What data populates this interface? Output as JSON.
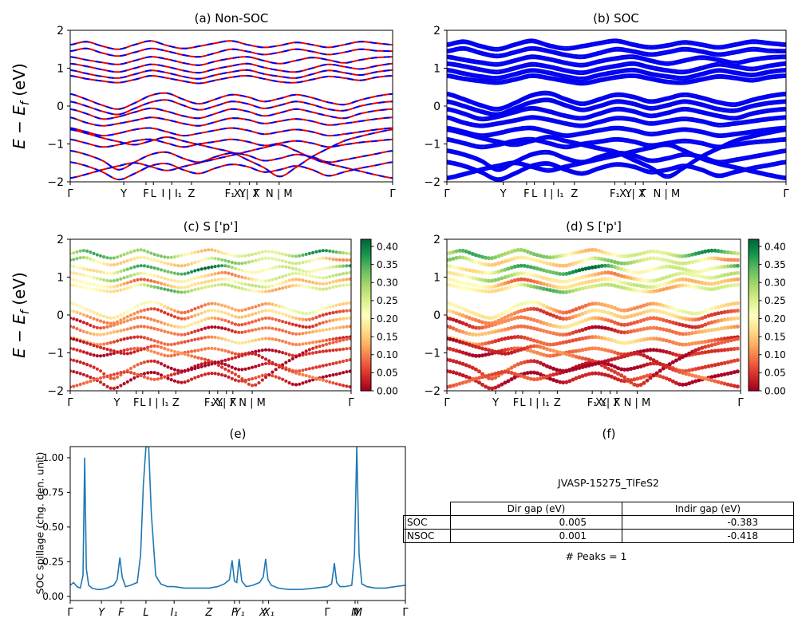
{
  "figure": {
    "background": "#ffffff",
    "cmap_colors": [
      "#a50026",
      "#d73027",
      "#f46d43",
      "#fdae61",
      "#fee08b",
      "#ffffbf",
      "#d9ef8b",
      "#a6d96a",
      "#66bd63",
      "#1a9850",
      "#006837"
    ]
  },
  "labels": {
    "energy": {
      "main": "E − E",
      "sub": "f",
      "unit": " (eV)"
    }
  },
  "band_xticks": [
    {
      "p": 0.0,
      "l": "Γ"
    },
    {
      "p": 0.166,
      "l": "Y"
    },
    {
      "p": 0.235,
      "l": "F"
    },
    {
      "p": 0.258,
      "l": "L"
    },
    {
      "p": 0.315,
      "l": "I | I₁"
    },
    {
      "p": 0.376,
      "l": "Z"
    },
    {
      "p": 0.495,
      "l": "F₁"
    },
    {
      "p": 0.525,
      "l": "X₁"
    },
    {
      "p": 0.556,
      "l": "Y| X"
    },
    {
      "p": 0.579,
      "l": "Γ"
    },
    {
      "p": 0.648,
      "l": "N | M"
    },
    {
      "p": 1.0,
      "l": "Γ"
    }
  ],
  "bands": {
    "k_grid": "uniform 0..1, 21 points",
    "list": [
      {
        "w": 0.26,
        "e": [
          1.62,
          1.7,
          1.58,
          1.5,
          1.62,
          1.72,
          1.6,
          1.52,
          1.58,
          1.66,
          1.72,
          1.62,
          1.55,
          1.6,
          1.68,
          1.62,
          1.55,
          1.62,
          1.7,
          1.66,
          1.62
        ]
      },
      {
        "w": 0.22,
        "e": [
          1.45,
          1.52,
          1.4,
          1.32,
          1.42,
          1.52,
          1.45,
          1.35,
          1.3,
          1.4,
          1.5,
          1.44,
          1.36,
          1.42,
          1.5,
          1.44,
          1.36,
          1.42,
          1.5,
          1.46,
          1.45
        ]
      },
      {
        "w": 0.3,
        "e": [
          1.3,
          1.22,
          1.15,
          1.1,
          1.2,
          1.3,
          1.24,
          1.14,
          1.08,
          1.18,
          1.26,
          1.3,
          1.2,
          1.12,
          1.2,
          1.28,
          1.22,
          1.14,
          1.22,
          1.28,
          1.3
        ]
      },
      {
        "w": 0.2,
        "e": [
          1.12,
          1.05,
          0.96,
          0.9,
          1.0,
          1.1,
          1.04,
          0.94,
          0.88,
          0.98,
          1.06,
          1.12,
          1.02,
          0.94,
          0.9,
          1.0,
          1.1,
          1.04,
          0.98,
          1.06,
          1.12
        ]
      },
      {
        "w": 0.17,
        "e": [
          0.95,
          0.86,
          0.78,
          0.74,
          0.84,
          0.94,
          0.88,
          0.78,
          0.72,
          0.82,
          0.9,
          0.95,
          0.85,
          0.78,
          0.74,
          0.84,
          0.94,
          0.88,
          0.82,
          0.9,
          0.95
        ]
      },
      {
        "w": 0.24,
        "e": [
          0.8,
          0.72,
          0.66,
          0.62,
          0.7,
          0.8,
          0.74,
          0.66,
          0.6,
          0.68,
          0.76,
          0.8,
          0.72,
          0.64,
          0.62,
          0.7,
          0.78,
          0.74,
          0.68,
          0.76,
          0.8
        ]
      },
      {
        "w": 0.15,
        "e": [
          0.32,
          0.18,
          0.02,
          -0.08,
          0.08,
          0.28,
          0.34,
          0.18,
          0.06,
          0.18,
          0.3,
          0.24,
          0.12,
          0.2,
          0.3,
          0.22,
          0.1,
          0.04,
          0.16,
          0.26,
          0.32
        ]
      },
      {
        "w": 0.12,
        "e": [
          0.12,
          0.0,
          -0.14,
          -0.22,
          -0.06,
          0.1,
          0.16,
          0.02,
          -0.1,
          0.0,
          0.12,
          0.06,
          -0.06,
          0.02,
          0.12,
          0.04,
          -0.08,
          -0.12,
          0.0,
          0.08,
          0.12
        ]
      },
      {
        "w": 0.1,
        "e": [
          -0.08,
          -0.2,
          -0.34,
          -0.28,
          -0.16,
          -0.06,
          -0.14,
          -0.26,
          -0.32,
          -0.2,
          -0.08,
          -0.14,
          -0.26,
          -0.18,
          -0.08,
          -0.16,
          -0.26,
          -0.32,
          -0.2,
          -0.12,
          -0.08
        ]
      },
      {
        "w": 0.08,
        "e": [
          -0.3,
          -0.44,
          -0.52,
          -0.46,
          -0.38,
          -0.3,
          -0.36,
          -0.46,
          -0.52,
          -0.42,
          -0.32,
          -0.36,
          -0.46,
          -0.4,
          -0.34,
          -0.4,
          -0.5,
          -0.46,
          -0.4,
          -0.34,
          -0.3
        ]
      },
      {
        "w": 0.1,
        "e": [
          -0.58,
          -0.68,
          -0.78,
          -0.72,
          -0.62,
          -0.58,
          -0.68,
          -0.78,
          -0.72,
          -0.64,
          -0.58,
          -0.64,
          -0.74,
          -0.68,
          -0.62,
          -0.68,
          -0.78,
          -0.74,
          -0.68,
          -0.62,
          -0.58
        ]
      },
      {
        "w": 0.06,
        "e": [
          -0.88,
          -0.98,
          -1.08,
          -1.02,
          -0.92,
          -0.88,
          -0.98,
          -1.08,
          -1.0,
          -0.94,
          -0.88,
          -0.94,
          -1.04,
          -0.98,
          -0.92,
          -0.98,
          -1.08,
          -1.02,
          -0.96,
          -0.92,
          -0.88
        ]
      },
      {
        "w": 0.03,
        "e": [
          -1.18,
          -1.28,
          -1.44,
          -1.68,
          -1.48,
          -1.28,
          -1.22,
          -1.38,
          -1.48,
          -1.34,
          -1.24,
          -1.3,
          -1.44,
          -1.38,
          -1.28,
          -1.34,
          -1.48,
          -1.42,
          -1.34,
          -1.26,
          -1.18
        ]
      },
      {
        "w": 0.02,
        "e": [
          -1.48,
          -1.58,
          -1.74,
          -1.94,
          -1.78,
          -1.58,
          -1.52,
          -1.68,
          -1.78,
          -1.64,
          -1.54,
          -1.6,
          -1.74,
          -1.68,
          -1.58,
          -1.68,
          -1.84,
          -1.74,
          -1.64,
          -1.56,
          -1.48
        ]
      },
      {
        "w": 0.05,
        "e": [
          -0.62,
          -0.72,
          -0.84,
          -0.94,
          -1.02,
          -0.92,
          -0.82,
          -0.92,
          -1.02,
          -1.12,
          -1.22,
          -1.42,
          -1.62,
          -1.86,
          -1.62,
          -1.34,
          -1.12,
          -0.92,
          -0.8,
          -0.7,
          -0.62
        ]
      },
      {
        "w": 0.04,
        "e": [
          -1.9,
          -1.8,
          -1.68,
          -1.58,
          -1.5,
          -1.6,
          -1.7,
          -1.6,
          -1.5,
          -1.4,
          -1.3,
          -1.2,
          -1.1,
          -1.02,
          -1.18,
          -1.38,
          -1.52,
          -1.62,
          -1.72,
          -1.82,
          -1.9
        ]
      }
    ]
  },
  "chart_data": [
    {
      "id": "a",
      "type": "line",
      "title": "(a) Non-SOC",
      "ylabel": "E − E_f (eV)",
      "ylim": [
        -2,
        2
      ],
      "yticks": [
        {
          "v": 2,
          "l": "2"
        },
        {
          "v": 1,
          "l": "1"
        },
        {
          "v": 0,
          "l": "0"
        },
        {
          "v": -1,
          "l": "−1"
        },
        {
          "v": -2,
          "l": "−2"
        }
      ],
      "style": {
        "line_color": "#e50000",
        "overlay_color": "#0000f0",
        "overlay_dash": "8 8"
      }
    },
    {
      "id": "b",
      "type": "line",
      "title": "(b) SOC",
      "ylim": [
        -2,
        2
      ],
      "yticks": [
        {
          "v": 2,
          "l": "2"
        },
        {
          "v": 1,
          "l": "1"
        },
        {
          "v": 0,
          "l": "0"
        },
        {
          "v": -1,
          "l": "−1"
        },
        {
          "v": -2,
          "l": "−2"
        }
      ],
      "style": {
        "line_color": "#0000f0",
        "split": 0.04
      }
    },
    {
      "id": "c",
      "type": "scatter",
      "title": "(c) S ['p']",
      "ylabel": "E − E_f (eV)",
      "ylim": [
        -2,
        2
      ],
      "yticks": [
        {
          "v": 2,
          "l": "2"
        },
        {
          "v": 1,
          "l": "1"
        },
        {
          "v": 0,
          "l": "0"
        },
        {
          "v": -1,
          "l": "−1"
        },
        {
          "v": -2,
          "l": "−2"
        }
      ],
      "dot_radius": 2.1,
      "dot_step": 0.012,
      "colorbar": {
        "vmin": 0,
        "vmax": 0.42,
        "ticks": [
          {
            "v": 0.4,
            "l": "0.40"
          },
          {
            "v": 0.35,
            "l": "0.35"
          },
          {
            "v": 0.3,
            "l": "0.30"
          },
          {
            "v": 0.25,
            "l": "0.25"
          },
          {
            "v": 0.2,
            "l": "0.20"
          },
          {
            "v": 0.15,
            "l": "0.15"
          },
          {
            "v": 0.1,
            "l": "0.10"
          },
          {
            "v": 0.05,
            "l": "0.05"
          },
          {
            "v": 0.0,
            "l": "0.00"
          }
        ]
      }
    },
    {
      "id": "d",
      "type": "scatter",
      "title": "(d) S ['p']",
      "ylim": [
        -2,
        2
      ],
      "yticks": [
        {
          "v": 2,
          "l": "2"
        },
        {
          "v": 1,
          "l": "1"
        },
        {
          "v": 0,
          "l": "0"
        },
        {
          "v": -1,
          "l": "−1"
        },
        {
          "v": -2,
          "l": "−2"
        }
      ],
      "dot_radius": 2.5,
      "dot_step": 0.011,
      "colorbar": {
        "vmin": 0,
        "vmax": 0.42,
        "ticks": [
          {
            "v": 0.4,
            "l": "0.40"
          },
          {
            "v": 0.35,
            "l": "0.35"
          },
          {
            "v": 0.3,
            "l": "0.30"
          },
          {
            "v": 0.25,
            "l": "0.25"
          },
          {
            "v": 0.2,
            "l": "0.20"
          },
          {
            "v": 0.15,
            "l": "0.15"
          },
          {
            "v": 0.1,
            "l": "0.10"
          },
          {
            "v": 0.05,
            "l": "0.05"
          },
          {
            "v": 0.0,
            "l": "0.00"
          }
        ]
      }
    },
    {
      "id": "e",
      "type": "line",
      "title": "(e)",
      "ylabel": "SOC spillage (chg. den. unit)",
      "ylim": [
        -0.03,
        1.08
      ],
      "line_color": "#1f77b4",
      "italic_x": true,
      "yticks": [
        {
          "v": 1.0,
          "l": "1.00"
        },
        {
          "v": 0.75,
          "l": "0.75"
        },
        {
          "v": 0.5,
          "l": "0.50"
        },
        {
          "v": 0.25,
          "l": "0.25"
        },
        {
          "v": 0.0,
          "l": "0.00"
        }
      ],
      "xticks": [
        {
          "p": 0.0,
          "l": "Γ"
        },
        {
          "p": 0.093,
          "l": "Y"
        },
        {
          "p": 0.152,
          "l": "F"
        },
        {
          "p": 0.226,
          "l": "L"
        },
        {
          "p": 0.31,
          "l": "I₁"
        },
        {
          "p": 0.414,
          "l": "Z"
        },
        {
          "p": 0.49,
          "l": "F"
        },
        {
          "p": 0.505,
          "l": "Y₁"
        },
        {
          "p": 0.575,
          "l": "X"
        },
        {
          "p": 0.592,
          "l": "X₁"
        },
        {
          "p": 0.767,
          "l": "Γ"
        },
        {
          "p": 0.85,
          "l": "N"
        },
        {
          "p": 0.858,
          "l": "M"
        },
        {
          "p": 1.0,
          "l": "Γ"
        }
      ],
      "x": [
        0.0,
        0.01,
        0.02,
        0.03,
        0.038,
        0.043,
        0.048,
        0.055,
        0.065,
        0.08,
        0.093,
        0.11,
        0.13,
        0.14,
        0.148,
        0.155,
        0.165,
        0.18,
        0.2,
        0.21,
        0.218,
        0.226,
        0.234,
        0.242,
        0.255,
        0.27,
        0.29,
        0.31,
        0.34,
        0.38,
        0.414,
        0.44,
        0.46,
        0.475,
        0.483,
        0.49,
        0.497,
        0.504,
        0.512,
        0.525,
        0.545,
        0.565,
        0.576,
        0.583,
        0.59,
        0.6,
        0.62,
        0.65,
        0.69,
        0.73,
        0.767,
        0.78,
        0.788,
        0.795,
        0.805,
        0.82,
        0.84,
        0.848,
        0.855,
        0.862,
        0.87,
        0.885,
        0.91,
        0.94,
        0.97,
        1.0
      ],
      "y": [
        0.08,
        0.1,
        0.07,
        0.06,
        0.15,
        1.0,
        0.2,
        0.08,
        0.06,
        0.05,
        0.05,
        0.06,
        0.08,
        0.12,
        0.28,
        0.14,
        0.07,
        0.08,
        0.1,
        0.3,
        0.8,
        1.08,
        1.08,
        0.6,
        0.15,
        0.09,
        0.07,
        0.07,
        0.06,
        0.06,
        0.06,
        0.07,
        0.09,
        0.12,
        0.26,
        0.11,
        0.1,
        0.27,
        0.11,
        0.07,
        0.08,
        0.1,
        0.14,
        0.27,
        0.12,
        0.08,
        0.06,
        0.05,
        0.05,
        0.06,
        0.07,
        0.09,
        0.24,
        0.1,
        0.07,
        0.07,
        0.08,
        0.3,
        1.08,
        0.3,
        0.09,
        0.07,
        0.06,
        0.06,
        0.07,
        0.08
      ]
    },
    {
      "id": "f",
      "type": "table",
      "title": "(f)",
      "heading": "JVASP-15275_TlFeS2",
      "columns": [
        "Dir gap (eV)",
        "Indir gap (eV)"
      ],
      "rows": [
        {
          "label": "SOC",
          "dir": "0.005",
          "indir": "-0.383"
        },
        {
          "label": "NSOC",
          "dir": "0.001",
          "indir": "-0.418"
        }
      ],
      "caption": "# Peaks = 1"
    }
  ]
}
